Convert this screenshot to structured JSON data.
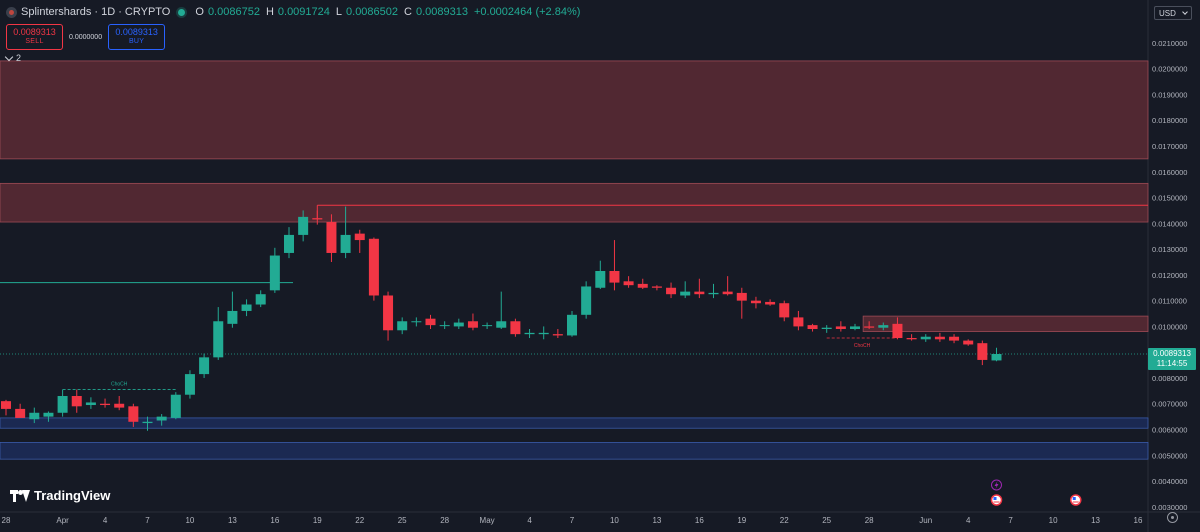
{
  "legend": {
    "symbol": "Splintershards · 1D · CRYPTO",
    "open_label": "O",
    "open": "0.0086752",
    "high_label": "H",
    "high": "0.0091724",
    "low_label": "L",
    "low": "0.0086502",
    "close_label": "C",
    "close": "0.0089313",
    "change": "+0.0002464 (+2.84%)"
  },
  "trade": {
    "sell_price": "0.0089313",
    "sell_label": "SELL",
    "spread": "0.0000000",
    "buy_price": "0.0089313",
    "buy_label": "BUY"
  },
  "indicators_toggle": "2",
  "currency": "USD",
  "last_price": {
    "value": "0.0089313",
    "countdown": "11:14:55"
  },
  "brand": "TradingView",
  "colors": {
    "background": "#161a25",
    "up": "#22ab94",
    "down": "#f23645",
    "supply_zone": "#5c2c35",
    "demand_zone": "#1c2d5a"
  },
  "chart_data": {
    "type": "candlestick",
    "y_axis": {
      "ticks": [
        "0.0210000",
        "0.0200000",
        "0.0190000",
        "0.0180000",
        "0.0170000",
        "0.0160000",
        "0.0150000",
        "0.0140000",
        "0.0130000",
        "0.0120000",
        "0.0110000",
        "0.0100000",
        "0.0090000",
        "0.0080000",
        "0.0070000",
        "0.0060000",
        "0.0050000",
        "0.0040000",
        "0.0030000"
      ],
      "range": [
        0.0028,
        0.0215
      ]
    },
    "x_axis": {
      "ticks": [
        {
          "label": "28",
          "day": -4
        },
        {
          "label": "Apr",
          "day": 0
        },
        {
          "label": "4",
          "day": 3
        },
        {
          "label": "7",
          "day": 6
        },
        {
          "label": "10",
          "day": 9
        },
        {
          "label": "13",
          "day": 12
        },
        {
          "label": "16",
          "day": 15
        },
        {
          "label": "19",
          "day": 18
        },
        {
          "label": "22",
          "day": 21
        },
        {
          "label": "25",
          "day": 24
        },
        {
          "label": "28",
          "day": 27
        },
        {
          "label": "May",
          "day": 30
        },
        {
          "label": "4",
          "day": 33
        },
        {
          "label": "7",
          "day": 36
        },
        {
          "label": "10",
          "day": 39
        },
        {
          "label": "13",
          "day": 42
        },
        {
          "label": "16",
          "day": 45
        },
        {
          "label": "19",
          "day": 48
        },
        {
          "label": "22",
          "day": 51
        },
        {
          "label": "25",
          "day": 54
        },
        {
          "label": "28",
          "day": 57
        },
        {
          "label": "Jun",
          "day": 61
        },
        {
          "label": "4",
          "day": 64
        },
        {
          "label": "7",
          "day": 67
        },
        {
          "label": "10",
          "day": 70
        },
        {
          "label": "13",
          "day": 73
        },
        {
          "label": "16",
          "day": 76
        }
      ]
    },
    "candles": [
      {
        "day": -4,
        "o": 0.0071,
        "h": 0.00715,
        "l": 0.00655,
        "c": 0.0068
      },
      {
        "day": -3,
        "o": 0.0068,
        "h": 0.007,
        "l": 0.0065,
        "c": 0.00645
      },
      {
        "day": -2,
        "o": 0.0064,
        "h": 0.00685,
        "l": 0.00625,
        "c": 0.00665
      },
      {
        "day": -1,
        "o": 0.0065,
        "h": 0.0067,
        "l": 0.0063,
        "c": 0.00665
      },
      {
        "day": 0,
        "o": 0.00665,
        "h": 0.00755,
        "l": 0.0065,
        "c": 0.0073
      },
      {
        "day": 1,
        "o": 0.0073,
        "h": 0.00755,
        "l": 0.00665,
        "c": 0.0069
      },
      {
        "day": 2,
        "o": 0.00695,
        "h": 0.00725,
        "l": 0.0068,
        "c": 0.00705
      },
      {
        "day": 3,
        "o": 0.007,
        "h": 0.0072,
        "l": 0.00685,
        "c": 0.00695
      },
      {
        "day": 4,
        "o": 0.007,
        "h": 0.0073,
        "l": 0.00675,
        "c": 0.00685
      },
      {
        "day": 5,
        "o": 0.0069,
        "h": 0.007,
        "l": 0.0061,
        "c": 0.0063
      },
      {
        "day": 6,
        "o": 0.00625,
        "h": 0.0065,
        "l": 0.00595,
        "c": 0.0063
      },
      {
        "day": 7,
        "o": 0.00635,
        "h": 0.0066,
        "l": 0.00615,
        "c": 0.0065
      },
      {
        "day": 8,
        "o": 0.00645,
        "h": 0.00745,
        "l": 0.0064,
        "c": 0.00735
      },
      {
        "day": 9,
        "o": 0.00735,
        "h": 0.0083,
        "l": 0.0072,
        "c": 0.00815
      },
      {
        "day": 10,
        "o": 0.00815,
        "h": 0.00895,
        "l": 0.008,
        "c": 0.0088
      },
      {
        "day": 11,
        "o": 0.0088,
        "h": 0.01075,
        "l": 0.0087,
        "c": 0.0102
      },
      {
        "day": 12,
        "o": 0.0101,
        "h": 0.01135,
        "l": 0.00995,
        "c": 0.0106
      },
      {
        "day": 13,
        "o": 0.0106,
        "h": 0.01105,
        "l": 0.0104,
        "c": 0.01085
      },
      {
        "day": 14,
        "o": 0.01085,
        "h": 0.0114,
        "l": 0.01075,
        "c": 0.01125
      },
      {
        "day": 15,
        "o": 0.0114,
        "h": 0.01305,
        "l": 0.0113,
        "c": 0.01275
      },
      {
        "day": 16,
        "o": 0.01285,
        "h": 0.01385,
        "l": 0.01265,
        "c": 0.01355
      },
      {
        "day": 17,
        "o": 0.01355,
        "h": 0.0145,
        "l": 0.0133,
        "c": 0.01425
      },
      {
        "day": 18,
        "o": 0.0142,
        "h": 0.0145,
        "l": 0.01395,
        "c": 0.01415
      },
      {
        "day": 19,
        "o": 0.01405,
        "h": 0.01435,
        "l": 0.0125,
        "c": 0.01285
      },
      {
        "day": 20,
        "o": 0.01285,
        "h": 0.01465,
        "l": 0.01265,
        "c": 0.01355
      },
      {
        "day": 21,
        "o": 0.0136,
        "h": 0.01375,
        "l": 0.01285,
        "c": 0.01335
      },
      {
        "day": 22,
        "o": 0.0134,
        "h": 0.01345,
        "l": 0.011,
        "c": 0.0112
      },
      {
        "day": 23,
        "o": 0.0112,
        "h": 0.01135,
        "l": 0.00945,
        "c": 0.00985
      },
      {
        "day": 24,
        "o": 0.00985,
        "h": 0.01035,
        "l": 0.0097,
        "c": 0.0102
      },
      {
        "day": 25,
        "o": 0.0102,
        "h": 0.01035,
        "l": 0.01,
        "c": 0.0102
      },
      {
        "day": 26,
        "o": 0.0103,
        "h": 0.01045,
        "l": 0.0099,
        "c": 0.01005
      },
      {
        "day": 27,
        "o": 0.01005,
        "h": 0.0102,
        "l": 0.0099,
        "c": 0.01005
      },
      {
        "day": 28,
        "o": 0.01,
        "h": 0.0103,
        "l": 0.0099,
        "c": 0.01015
      },
      {
        "day": 29,
        "o": 0.0102,
        "h": 0.0105,
        "l": 0.00985,
        "c": 0.00995
      },
      {
        "day": 30,
        "o": 0.01005,
        "h": 0.01015,
        "l": 0.0099,
        "c": 0.01005
      },
      {
        "day": 31,
        "o": 0.00995,
        "h": 0.01135,
        "l": 0.0099,
        "c": 0.0102
      },
      {
        "day": 32,
        "o": 0.0102,
        "h": 0.0103,
        "l": 0.0096,
        "c": 0.0097
      },
      {
        "day": 33,
        "o": 0.0097,
        "h": 0.0099,
        "l": 0.00955,
        "c": 0.00975
      },
      {
        "day": 34,
        "o": 0.0097,
        "h": 0.01,
        "l": 0.0095,
        "c": 0.00975
      },
      {
        "day": 35,
        "o": 0.0097,
        "h": 0.0099,
        "l": 0.00955,
        "c": 0.00965
      },
      {
        "day": 36,
        "o": 0.00965,
        "h": 0.0106,
        "l": 0.0096,
        "c": 0.01045
      },
      {
        "day": 37,
        "o": 0.01045,
        "h": 0.01175,
        "l": 0.0103,
        "c": 0.01155
      },
      {
        "day": 38,
        "o": 0.0115,
        "h": 0.01255,
        "l": 0.01145,
        "c": 0.01215
      },
      {
        "day": 39,
        "o": 0.01215,
        "h": 0.01335,
        "l": 0.0114,
        "c": 0.0117
      },
      {
        "day": 40,
        "o": 0.01175,
        "h": 0.01195,
        "l": 0.0115,
        "c": 0.0116
      },
      {
        "day": 41,
        "o": 0.01165,
        "h": 0.01185,
        "l": 0.01145,
        "c": 0.0115
      },
      {
        "day": 42,
        "o": 0.01155,
        "h": 0.0116,
        "l": 0.0114,
        "c": 0.0115
      },
      {
        "day": 43,
        "o": 0.0115,
        "h": 0.0117,
        "l": 0.0111,
        "c": 0.01125
      },
      {
        "day": 44,
        "o": 0.0112,
        "h": 0.01175,
        "l": 0.0111,
        "c": 0.01135
      },
      {
        "day": 45,
        "o": 0.01135,
        "h": 0.01185,
        "l": 0.0111,
        "c": 0.01125
      },
      {
        "day": 46,
        "o": 0.01125,
        "h": 0.01165,
        "l": 0.0111,
        "c": 0.0113
      },
      {
        "day": 47,
        "o": 0.01135,
        "h": 0.01195,
        "l": 0.0112,
        "c": 0.01125
      },
      {
        "day": 48,
        "o": 0.0113,
        "h": 0.0115,
        "l": 0.0103,
        "c": 0.011
      },
      {
        "day": 49,
        "o": 0.011,
        "h": 0.01115,
        "l": 0.0107,
        "c": 0.0109
      },
      {
        "day": 50,
        "o": 0.01095,
        "h": 0.01105,
        "l": 0.0108,
        "c": 0.01085
      },
      {
        "day": 51,
        "o": 0.0109,
        "h": 0.011,
        "l": 0.0102,
        "c": 0.01035
      },
      {
        "day": 52,
        "o": 0.01035,
        "h": 0.0106,
        "l": 0.00985,
        "c": 0.01
      },
      {
        "day": 53,
        "o": 0.01005,
        "h": 0.0101,
        "l": 0.0098,
        "c": 0.0099
      },
      {
        "day": 54,
        "o": 0.0099,
        "h": 0.01005,
        "l": 0.00975,
        "c": 0.00995
      },
      {
        "day": 55,
        "o": 0.01,
        "h": 0.0102,
        "l": 0.0098,
        "c": 0.0099
      },
      {
        "day": 56,
        "o": 0.0099,
        "h": 0.0101,
        "l": 0.00985,
        "c": 0.01
      },
      {
        "day": 57,
        "o": 0.01,
        "h": 0.0102,
        "l": 0.0099,
        "c": 0.00995
      },
      {
        "day": 58,
        "o": 0.00995,
        "h": 0.01015,
        "l": 0.00985,
        "c": 0.01005
      },
      {
        "day": 59,
        "o": 0.0101,
        "h": 0.01035,
        "l": 0.0095,
        "c": 0.00955
      },
      {
        "day": 60,
        "o": 0.00955,
        "h": 0.0097,
        "l": 0.00945,
        "c": 0.0095
      },
      {
        "day": 61,
        "o": 0.0095,
        "h": 0.0097,
        "l": 0.0094,
        "c": 0.0096
      },
      {
        "day": 62,
        "o": 0.0096,
        "h": 0.00975,
        "l": 0.0094,
        "c": 0.0095
      },
      {
        "day": 63,
        "o": 0.0096,
        "h": 0.0097,
        "l": 0.00935,
        "c": 0.00945
      },
      {
        "day": 64,
        "o": 0.00945,
        "h": 0.0095,
        "l": 0.00925,
        "c": 0.0093
      },
      {
        "day": 65,
        "o": 0.00935,
        "h": 0.00945,
        "l": 0.0085,
        "c": 0.0087
      },
      {
        "day": 66,
        "o": 0.00868,
        "h": 0.00917,
        "l": 0.00865,
        "c": 0.00893
      }
    ],
    "zones": [
      {
        "kind": "supply",
        "from_day": -4,
        "to_day": 82,
        "low": 0.0165,
        "high": 0.0203
      },
      {
        "kind": "supply",
        "from_day": -4,
        "to_day": 82,
        "low": 0.01405,
        "high": 0.01555
      },
      {
        "kind": "supply",
        "from_day": 57,
        "to_day": 82,
        "low": 0.0098,
        "high": 0.0104
      },
      {
        "kind": "demand",
        "from_day": -4,
        "to_day": 82,
        "low": 0.00605,
        "high": 0.00645
      },
      {
        "kind": "demand",
        "from_day": -4,
        "to_day": 82,
        "low": 0.00485,
        "high": 0.0055
      }
    ],
    "lines": [
      {
        "kind": "resistance",
        "from_day": 18,
        "to_day": 82,
        "value": 0.0147
      },
      {
        "kind": "support",
        "from_day": -4,
        "to_day": 16,
        "value": 0.0117
      }
    ],
    "annotations": [
      {
        "text": "ChoCH",
        "from_day": 0,
        "to_day": 8,
        "value": 0.00755
      },
      {
        "text": "ChoCH",
        "from_day": 54,
        "to_day": 59,
        "value": 0.00955
      }
    ]
  }
}
